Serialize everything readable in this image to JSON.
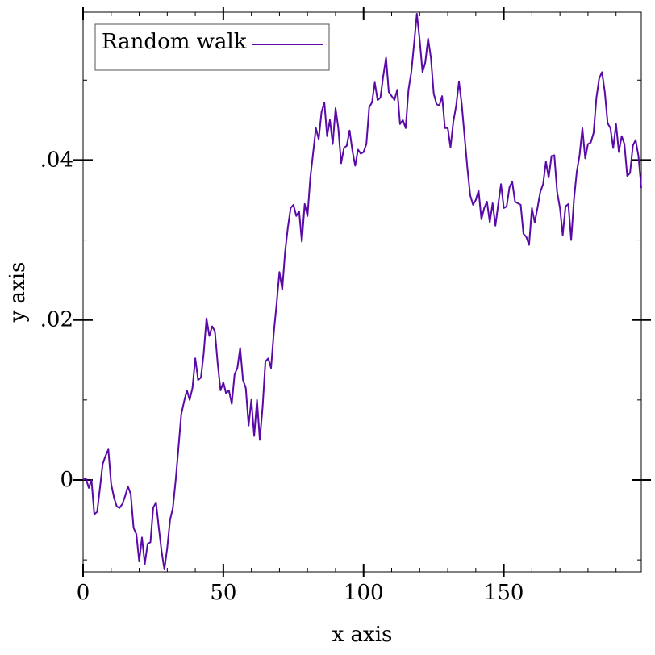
{
  "chart_data": {
    "type": "line",
    "title": "",
    "xlabel": "x axis",
    "ylabel": "y axis",
    "xlim": [
      0,
      199
    ],
    "ylim": [
      -0.0115,
      0.0585
    ],
    "x_ticks": [
      {
        "value": 0,
        "label": "0"
      },
      {
        "value": 50,
        "label": "50"
      },
      {
        "value": 100,
        "label": "100"
      },
      {
        "value": 150,
        "label": "150"
      }
    ],
    "y_ticks": [
      {
        "value": 0,
        "label": "0"
      },
      {
        "value": 0.02,
        "label": ".02"
      },
      {
        "value": 0.04,
        "label": ".04"
      }
    ],
    "x_minor_step": 10,
    "y_minor_step": 0.01,
    "grid": false,
    "legend": {
      "position": "top-left"
    },
    "series": [
      {
        "name": "Random walk",
        "color": "#5a0aa6",
        "points": [
          [
            0,
            0.0
          ],
          [
            1,
            0.0002
          ],
          [
            2,
            -0.001
          ],
          [
            3,
            0.0
          ],
          [
            4,
            -0.0043
          ],
          [
            5,
            -0.004
          ],
          [
            6,
            -0.001
          ],
          [
            7,
            0.002
          ],
          [
            8,
            0.003
          ],
          [
            9,
            0.0038
          ],
          [
            10,
            -0.0005
          ],
          [
            11,
            -0.0022
          ],
          [
            12,
            -0.0033
          ],
          [
            13,
            -0.0035
          ],
          [
            14,
            -0.003
          ],
          [
            15,
            -0.002
          ],
          [
            16,
            -0.0008
          ],
          [
            17,
            -0.0018
          ],
          [
            18,
            -0.006
          ],
          [
            19,
            -0.0068
          ],
          [
            20,
            -0.0102
          ],
          [
            21,
            -0.0072
          ],
          [
            22,
            -0.0105
          ],
          [
            23,
            -0.008
          ],
          [
            24,
            -0.0078
          ],
          [
            25,
            -0.0035
          ],
          [
            26,
            -0.0028
          ],
          [
            27,
            -0.006
          ],
          [
            28,
            -0.009
          ],
          [
            29,
            -0.0112
          ],
          [
            30,
            -0.0085
          ],
          [
            31,
            -0.005
          ],
          [
            32,
            -0.0035
          ],
          [
            33,
            0.0
          ],
          [
            34,
            0.004
          ],
          [
            35,
            0.0082
          ],
          [
            36,
            0.0098
          ],
          [
            37,
            0.0112
          ],
          [
            38,
            0.01
          ],
          [
            39,
            0.0115
          ],
          [
            40,
            0.0152
          ],
          [
            41,
            0.0125
          ],
          [
            42,
            0.0128
          ],
          [
            43,
            0.0158
          ],
          [
            44,
            0.0202
          ],
          [
            45,
            0.018
          ],
          [
            46,
            0.0192
          ],
          [
            47,
            0.0186
          ],
          [
            48,
            0.0145
          ],
          [
            49,
            0.0112
          ],
          [
            50,
            0.0122
          ],
          [
            51,
            0.0108
          ],
          [
            52,
            0.0112
          ],
          [
            53,
            0.0095
          ],
          [
            54,
            0.0132
          ],
          [
            55,
            0.014
          ],
          [
            56,
            0.0165
          ],
          [
            57,
            0.0125
          ],
          [
            58,
            0.0115
          ],
          [
            59,
            0.0068
          ],
          [
            60,
            0.01
          ],
          [
            61,
            0.0055
          ],
          [
            62,
            0.01
          ],
          [
            63,
            0.005
          ],
          [
            64,
            0.0092
          ],
          [
            65,
            0.0148
          ],
          [
            66,
            0.0152
          ],
          [
            67,
            0.014
          ],
          [
            68,
            0.0185
          ],
          [
            69,
            0.022
          ],
          [
            70,
            0.026
          ],
          [
            71,
            0.0238
          ],
          [
            72,
            0.0285
          ],
          [
            73,
            0.0315
          ],
          [
            74,
            0.034
          ],
          [
            75,
            0.0344
          ],
          [
            76,
            0.033
          ],
          [
            77,
            0.0336
          ],
          [
            78,
            0.0298
          ],
          [
            79,
            0.0345
          ],
          [
            80,
            0.033
          ],
          [
            81,
            0.0378
          ],
          [
            82,
            0.0408
          ],
          [
            83,
            0.044
          ],
          [
            84,
            0.0426
          ],
          [
            85,
            0.046
          ],
          [
            86,
            0.0472
          ],
          [
            87,
            0.043
          ],
          [
            88,
            0.045
          ],
          [
            89,
            0.042
          ],
          [
            90,
            0.0465
          ],
          [
            91,
            0.044
          ],
          [
            92,
            0.0396
          ],
          [
            93,
            0.0415
          ],
          [
            94,
            0.0418
          ],
          [
            95,
            0.0437
          ],
          [
            96,
            0.0412
          ],
          [
            97,
            0.0393
          ],
          [
            98,
            0.0413
          ],
          [
            99,
            0.0408
          ],
          [
            100,
            0.041
          ],
          [
            101,
            0.042
          ],
          [
            102,
            0.0466
          ],
          [
            103,
            0.0472
          ],
          [
            104,
            0.0497
          ],
          [
            105,
            0.0475
          ],
          [
            106,
            0.0478
          ],
          [
            107,
            0.0505
          ],
          [
            108,
            0.0528
          ],
          [
            109,
            0.0485
          ],
          [
            110,
            0.048
          ],
          [
            111,
            0.0475
          ],
          [
            112,
            0.0488
          ],
          [
            113,
            0.0445
          ],
          [
            114,
            0.045
          ],
          [
            115,
            0.044
          ],
          [
            116,
            0.0488
          ],
          [
            117,
            0.051
          ],
          [
            118,
            0.0545
          ],
          [
            119,
            0.0583
          ],
          [
            120,
            0.055
          ],
          [
            121,
            0.051
          ],
          [
            122,
            0.0522
          ],
          [
            123,
            0.0552
          ],
          [
            124,
            0.0528
          ],
          [
            125,
            0.0483
          ],
          [
            126,
            0.047
          ],
          [
            127,
            0.0468
          ],
          [
            128,
            0.048
          ],
          [
            129,
            0.044
          ],
          [
            130,
            0.044
          ],
          [
            131,
            0.0416
          ],
          [
            132,
            0.0448
          ],
          [
            133,
            0.0468
          ],
          [
            134,
            0.0498
          ],
          [
            135,
            0.047
          ],
          [
            136,
            0.043
          ],
          [
            137,
            0.039
          ],
          [
            138,
            0.0356
          ],
          [
            139,
            0.0344
          ],
          [
            140,
            0.035
          ],
          [
            141,
            0.0362
          ],
          [
            142,
            0.0326
          ],
          [
            143,
            0.034
          ],
          [
            144,
            0.0348
          ],
          [
            145,
            0.0322
          ],
          [
            146,
            0.0346
          ],
          [
            147,
            0.0318
          ],
          [
            148,
            0.0345
          ],
          [
            149,
            0.037
          ],
          [
            150,
            0.034
          ],
          [
            151,
            0.0342
          ],
          [
            152,
            0.0366
          ],
          [
            153,
            0.0373
          ],
          [
            154,
            0.0348
          ],
          [
            155,
            0.0346
          ],
          [
            156,
            0.0344
          ],
          [
            157,
            0.0308
          ],
          [
            158,
            0.0304
          ],
          [
            159,
            0.0294
          ],
          [
            160,
            0.034
          ],
          [
            161,
            0.0322
          ],
          [
            162,
            0.034
          ],
          [
            163,
            0.036
          ],
          [
            164,
            0.037
          ],
          [
            165,
            0.0398
          ],
          [
            166,
            0.0378
          ],
          [
            167,
            0.0405
          ],
          [
            168,
            0.0406
          ],
          [
            169,
            0.036
          ],
          [
            170,
            0.034
          ],
          [
            171,
            0.0306
          ],
          [
            172,
            0.0342
          ],
          [
            173,
            0.0345
          ],
          [
            174,
            0.03
          ],
          [
            175,
            0.035
          ],
          [
            176,
            0.0385
          ],
          [
            177,
            0.0406
          ],
          [
            178,
            0.044
          ],
          [
            179,
            0.0402
          ],
          [
            180,
            0.042
          ],
          [
            181,
            0.0422
          ],
          [
            182,
            0.0434
          ],
          [
            183,
            0.0478
          ],
          [
            184,
            0.0502
          ],
          [
            185,
            0.051
          ],
          [
            186,
            0.0485
          ],
          [
            187,
            0.0446
          ],
          [
            188,
            0.044
          ],
          [
            189,
            0.0415
          ],
          [
            190,
            0.0445
          ],
          [
            191,
            0.041
          ],
          [
            192,
            0.043
          ],
          [
            193,
            0.042
          ],
          [
            194,
            0.038
          ],
          [
            195,
            0.0384
          ],
          [
            196,
            0.0418
          ],
          [
            197,
            0.0425
          ],
          [
            198,
            0.0405
          ],
          [
            199,
            0.0365
          ]
        ]
      }
    ]
  }
}
